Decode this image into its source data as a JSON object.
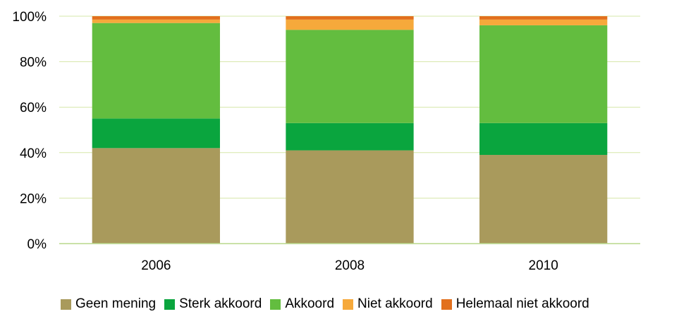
{
  "chart_data": {
    "type": "bar",
    "stacked": true,
    "categories": [
      "2006",
      "2008",
      "2010"
    ],
    "y_ticks": [
      "0%",
      "20%",
      "40%",
      "60%",
      "80%",
      "100%"
    ],
    "ylim": [
      0,
      100
    ],
    "grid": true,
    "legend_position": "bottom",
    "series": [
      {
        "name": "Geen mening",
        "color": "#a99a5c",
        "values": [
          42,
          41,
          39
        ]
      },
      {
        "name": "Sterk akkoord",
        "color": "#0aa53e",
        "values": [
          13,
          12,
          14
        ]
      },
      {
        "name": "Akkoord",
        "color": "#63bd3f",
        "values": [
          42,
          41,
          43
        ]
      },
      {
        "name": "Niet akkoord",
        "color": "#f6a93b",
        "values": [
          1.5,
          4.5,
          2.5
        ]
      },
      {
        "name": "Helemaal niet akkoord",
        "color": "#e2701d",
        "values": [
          1.5,
          1.5,
          1.5
        ]
      }
    ]
  }
}
